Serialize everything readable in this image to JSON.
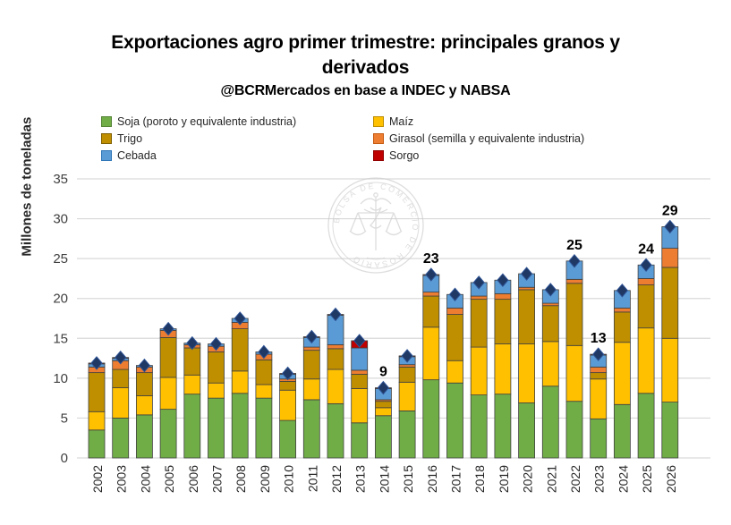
{
  "title": {
    "line1": "Exportaciones agro primer trimestre: principales granos y",
    "line2": "derivados",
    "subtitle": "@BCRMercados en base a INDEC y NABSA"
  },
  "watermark": {
    "text": "BOLSA DE COMERCIO DE ROSARIO",
    "color": "#c7c7c7"
  },
  "chart_data": {
    "type": "bar",
    "stacked": true,
    "title": "Exportaciones agro primer trimestre: principales granos y derivados",
    "subtitle": "@BCRMercados en base a INDEC y NABSA",
    "ylabel": "Millones de toneladas",
    "xlabel": "",
    "ylim": [
      0,
      35
    ],
    "yticks": [
      0,
      5,
      10,
      15,
      20,
      25,
      30,
      35
    ],
    "grid": true,
    "legend_position": "top",
    "categories": [
      "2002",
      "2003",
      "2004",
      "2005",
      "2006",
      "2007",
      "2008",
      "2009",
      "2010",
      "2011",
      "2012",
      "2013",
      "2014",
      "2015",
      "2016",
      "2017",
      "2018",
      "2019",
      "2020",
      "2021",
      "2022",
      "2023",
      "2024",
      "2025",
      "2026"
    ],
    "series": [
      {
        "key": "soja",
        "name": "Soja (poroto y equivalente industria)",
        "color": "#70AD47",
        "border": "#548235",
        "values": [
          3.5,
          5.0,
          5.4,
          6.1,
          8.0,
          7.5,
          8.1,
          7.5,
          4.7,
          7.3,
          6.8,
          4.4,
          5.3,
          5.9,
          9.8,
          9.4,
          7.9,
          8.0,
          6.9,
          9.0,
          7.1,
          4.9,
          6.7,
          8.1,
          7.0
        ]
      },
      {
        "key": "maiz",
        "name": "Maíz",
        "color": "#FFC000",
        "border": "#BC8C00",
        "values": [
          2.3,
          3.8,
          2.4,
          4.0,
          2.4,
          1.9,
          2.8,
          1.7,
          3.8,
          2.6,
          4.3,
          4.3,
          1.0,
          3.6,
          6.6,
          2.8,
          6.0,
          6.3,
          7.4,
          5.6,
          7.0,
          5.0,
          7.8,
          8.2,
          8.0
        ]
      },
      {
        "key": "trigo",
        "name": "Trigo",
        "color": "#BF8F00",
        "border": "#7F5F00",
        "values": [
          4.9,
          2.3,
          2.9,
          5.0,
          3.4,
          3.9,
          5.3,
          3.1,
          1.1,
          3.6,
          2.6,
          1.8,
          0.8,
          1.9,
          3.9,
          5.8,
          6.0,
          5.6,
          6.8,
          4.5,
          7.8,
          0.8,
          3.8,
          5.4,
          8.9
        ]
      },
      {
        "key": "girasol",
        "name": "Girasol (semilla y equivalente industria)",
        "color": "#ED7D31",
        "border": "#C55A11",
        "values": [
          0.7,
          1.1,
          0.7,
          0.9,
          0.4,
          0.7,
          0.8,
          0.7,
          0.3,
          0.4,
          0.5,
          0.5,
          0.2,
          0.3,
          0.5,
          0.8,
          0.4,
          0.7,
          0.3,
          0.3,
          0.5,
          0.7,
          0.5,
          0.8,
          2.4
        ]
      },
      {
        "key": "cebada",
        "name": "Cebada",
        "color": "#5B9BD5",
        "border": "#2E75B6",
        "values": [
          0.4,
          0.3,
          0.2,
          0.2,
          0.2,
          0.3,
          0.5,
          0.3,
          0.6,
          1.2,
          3.7,
          2.8,
          1.4,
          1.0,
          2.1,
          1.7,
          1.7,
          1.7,
          1.7,
          1.7,
          2.3,
          1.5,
          2.2,
          1.7,
          2.7
        ]
      },
      {
        "key": "sorgo",
        "name": "Sorgo",
        "color": "#C00000",
        "border": "#900000",
        "values": [
          0.1,
          0.1,
          0,
          0,
          0,
          0,
          0,
          0,
          0.1,
          0.1,
          0.1,
          0.9,
          0.1,
          0.1,
          0.1,
          0,
          0,
          0,
          0,
          0,
          0,
          0.1,
          0,
          0,
          0
        ]
      }
    ],
    "total_labels": {
      "2014": "9",
      "2016": "23",
      "2022": "25",
      "2023": "13",
      "2025": "24",
      "2026": "29"
    },
    "marker": {
      "shape": "diamond",
      "color": "#1F3864",
      "edge": "#2E5395"
    }
  },
  "axis": {
    "grid_color": "#D9D9D9",
    "tick_color": "#404040",
    "xlabel_color": "#262626"
  }
}
